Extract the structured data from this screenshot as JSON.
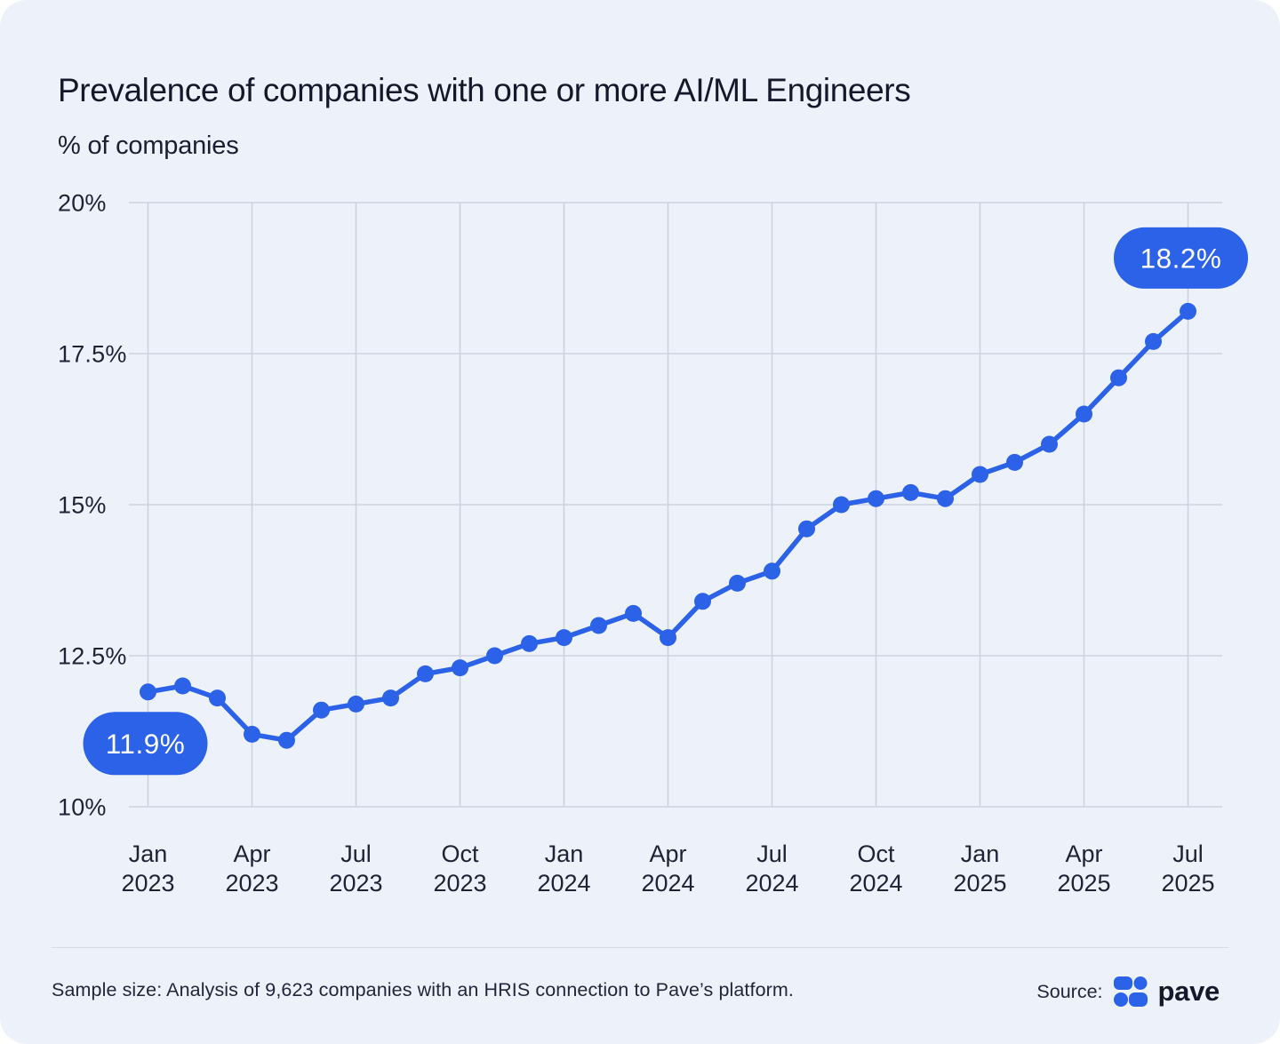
{
  "page": {
    "title": "Prevalence of companies with one or more AI/ML Engineers",
    "y_axis_title": "% of companies"
  },
  "footer": {
    "sample_note": "Sample size: Analysis of 9,623 companies with an HRIS connection to Pave’s platform.",
    "source_label": "Source:",
    "source_name": "pave"
  },
  "colors": {
    "background": "#edf1f9",
    "accent_blue": "#2c62e8",
    "grid_line": "#ccd3e0",
    "dark_text": "#14182b",
    "axis_text": "#1d2235",
    "divider": "#d7dbe6",
    "callout_fill": "#2c62e8",
    "callout_text": "#ffffff",
    "logo_blue": "#2c62e8"
  },
  "chart_data": {
    "type": "line",
    "title": "Prevalence of companies with one or more AI/ML Engineers",
    "xlabel": "",
    "ylabel": "% of companies",
    "ylim": [
      10,
      20
    ],
    "grid": "on",
    "legend_position": "none",
    "x": [
      "Jan 2023",
      "Feb 2023",
      "Mar 2023",
      "Apr 2023",
      "May 2023",
      "Jun 2023",
      "Jul 2023",
      "Aug 2023",
      "Sep 2023",
      "Oct 2023",
      "Nov 2023",
      "Dec 2023",
      "Jan 2024",
      "Feb 2024",
      "Mar 2024",
      "Apr 2024",
      "May 2024",
      "Jun 2024",
      "Jul 2024",
      "Aug 2024",
      "Sep 2024",
      "Oct 2024",
      "Nov 2024",
      "Dec 2024",
      "Jan 2025",
      "Feb 2025",
      "Mar 2025",
      "Apr 2025",
      "May 2025",
      "Jun 2025",
      "Jul 2025"
    ],
    "values": [
      11.9,
      12.0,
      11.8,
      11.2,
      11.1,
      11.6,
      11.7,
      11.8,
      12.2,
      12.3,
      12.5,
      12.7,
      12.8,
      13.0,
      13.2,
      12.8,
      13.4,
      13.7,
      13.9,
      14.6,
      15.0,
      15.1,
      15.2,
      15.1,
      15.5,
      15.7,
      16.0,
      16.5,
      17.1,
      17.7,
      18.2
    ],
    "y_ticks": [
      {
        "value": 10,
        "label": "10%"
      },
      {
        "value": 12.5,
        "label": "12.5%"
      },
      {
        "value": 15,
        "label": "15%"
      },
      {
        "value": 17.5,
        "label": "17.5%"
      },
      {
        "value": 20,
        "label": "20%"
      }
    ],
    "x_tick_every_months": 3,
    "annotations": [
      {
        "index": 0,
        "label": "11.9%",
        "position": "below"
      },
      {
        "index": 30,
        "label": "18.2%",
        "position": "above"
      }
    ]
  }
}
